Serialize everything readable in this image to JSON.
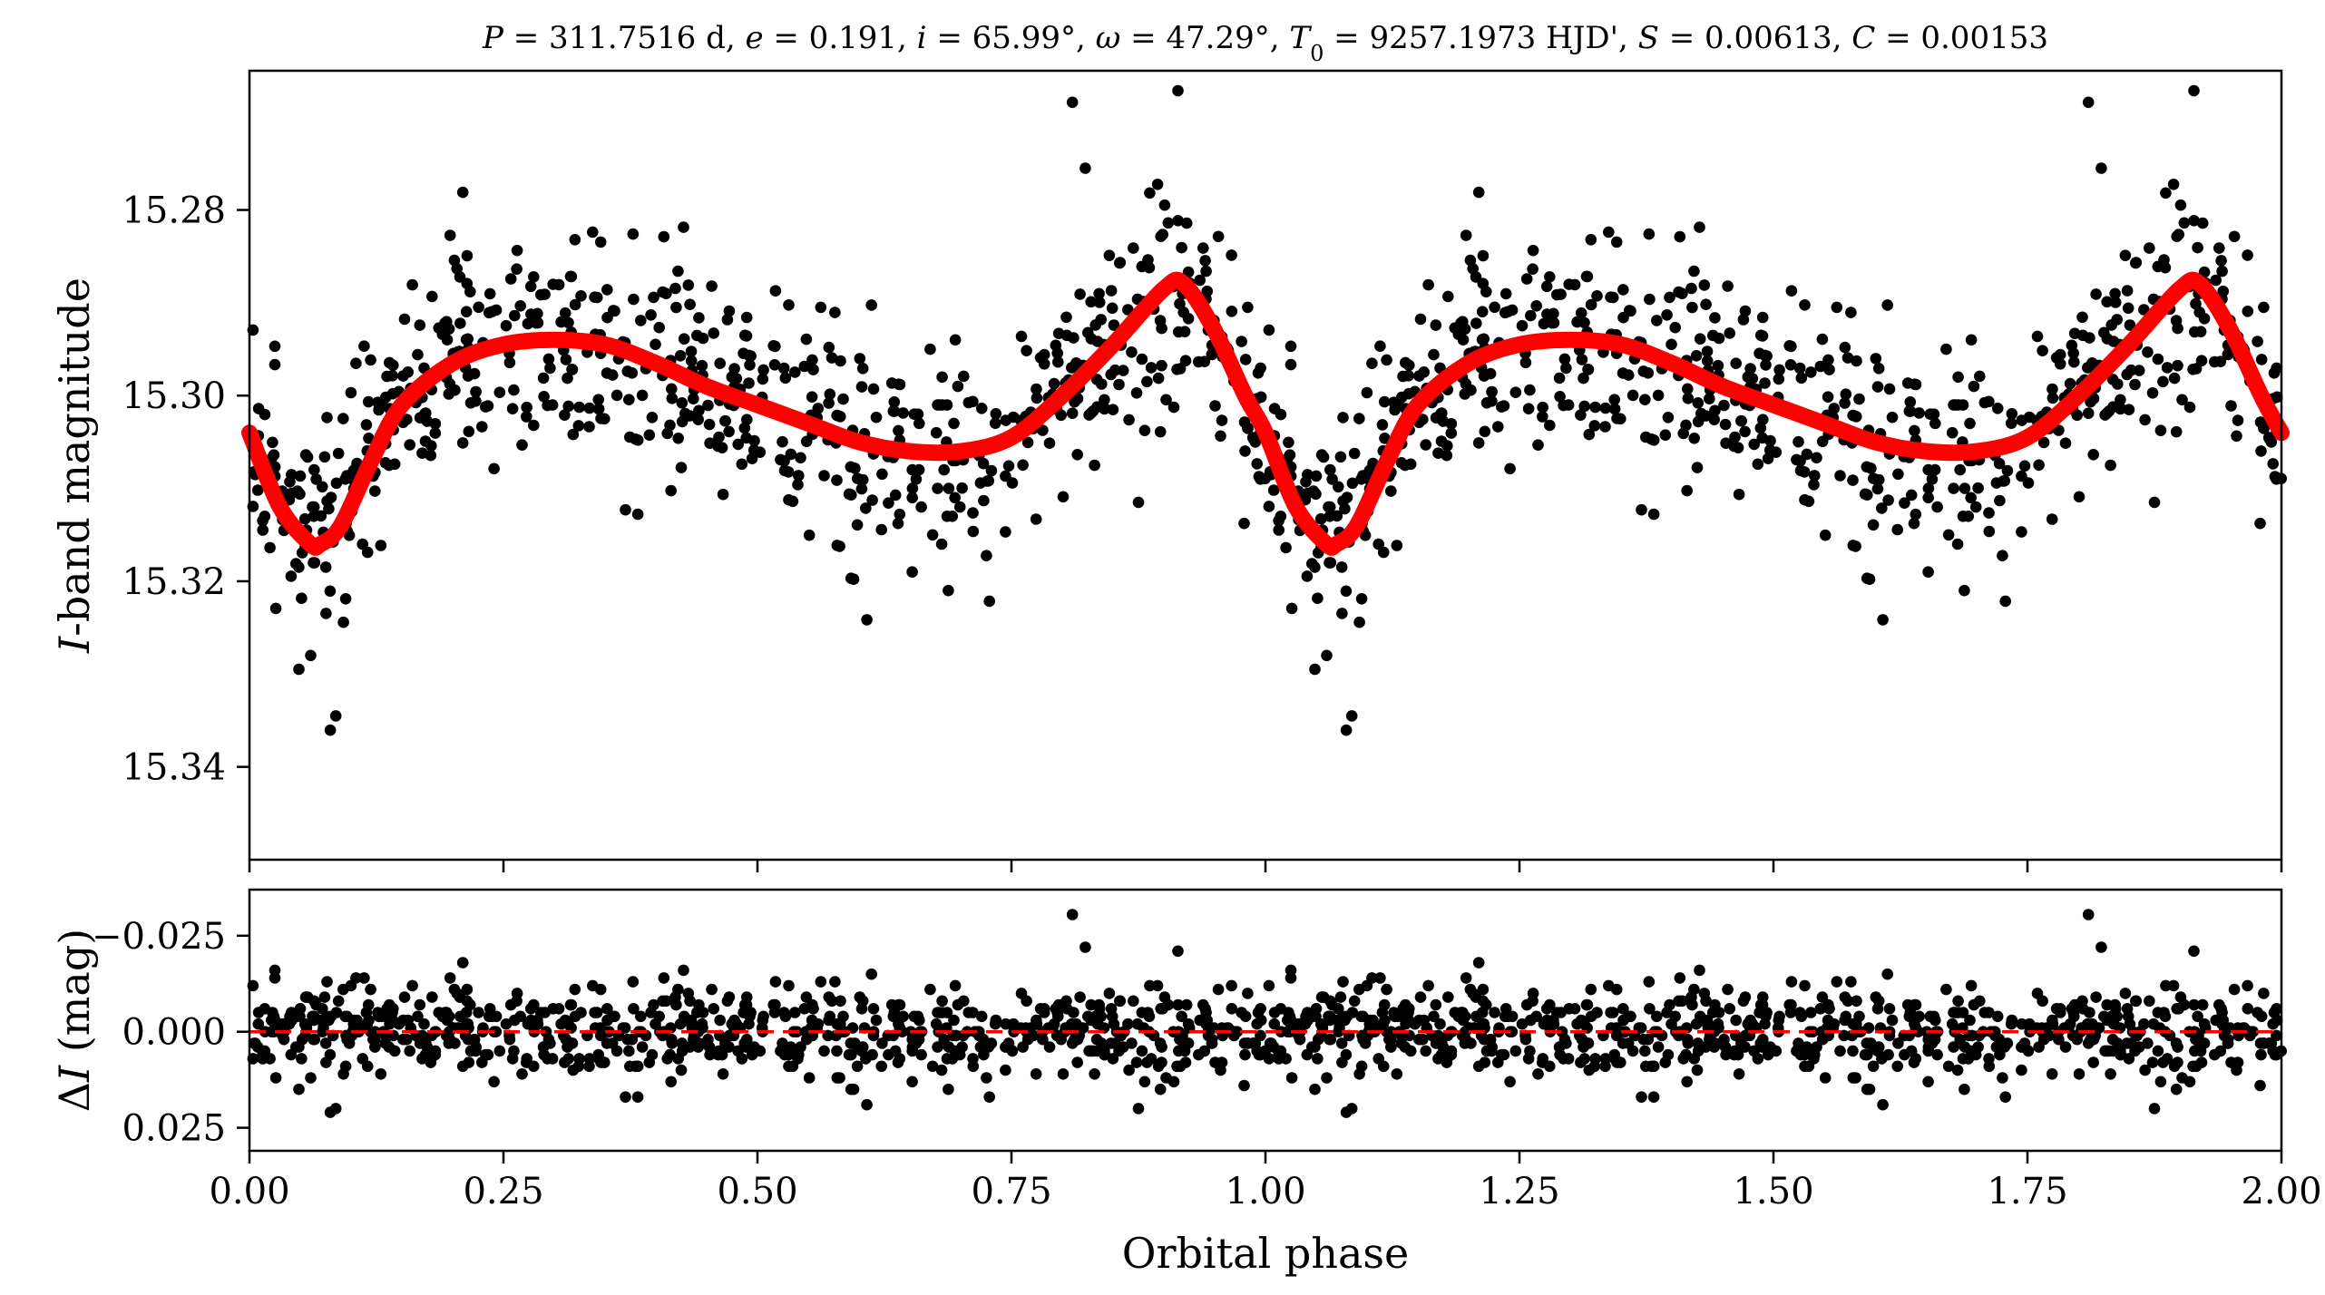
{
  "chart_data": [
    {
      "type": "scatter",
      "title": "P = 311.7516 d, e = 0.191, i = 65.99°, ω = 47.29°, T0 = 9257.1973 HJD', S = 0.00613, C = 0.00153",
      "xlabel": "",
      "ylabel": "I-band magnitude",
      "xlim": [
        0.0,
        2.0
      ],
      "ylim": [
        15.35,
        15.265
      ],
      "y_inverted": true,
      "yticks": [
        "15.28",
        "15.30",
        "15.32",
        "15.34"
      ],
      "grid": false,
      "colors": {
        "points": "#000000",
        "model": "#ff0000"
      },
      "model_curve": {
        "name": "",
        "x": [
          0.0,
          0.03,
          0.06,
          0.07,
          0.09,
          0.12,
          0.15,
          0.2,
          0.25,
          0.3,
          0.35,
          0.4,
          0.45,
          0.5,
          0.55,
          0.6,
          0.65,
          0.7,
          0.75,
          0.8,
          0.85,
          0.9,
          0.92,
          0.95,
          0.98,
          1.0,
          1.03,
          1.06,
          1.07,
          1.09,
          1.12,
          1.15,
          1.2,
          1.25,
          1.3,
          1.35,
          1.4,
          1.45,
          1.5,
          1.55,
          1.6,
          1.65,
          1.7,
          1.75,
          1.8,
          1.85,
          1.9,
          1.92,
          1.95,
          1.98,
          2.0
        ],
        "y": [
          15.304,
          15.312,
          15.316,
          15.316,
          15.314,
          15.307,
          15.301,
          15.2965,
          15.2945,
          15.294,
          15.2945,
          15.2965,
          15.299,
          15.301,
          15.303,
          15.305,
          15.306,
          15.306,
          15.3045,
          15.3,
          15.2945,
          15.2885,
          15.288,
          15.293,
          15.3,
          15.304,
          15.312,
          15.316,
          15.316,
          15.314,
          15.307,
          15.301,
          15.2965,
          15.2945,
          15.294,
          15.2945,
          15.2965,
          15.299,
          15.301,
          15.303,
          15.305,
          15.306,
          15.306,
          15.3045,
          15.3,
          15.2945,
          15.2885,
          15.288,
          15.293,
          15.3,
          15.304
        ]
      },
      "scatter_points": {
        "description_of_generation": "",
        "x": [],
        "y": []
      }
    },
    {
      "type": "scatter",
      "xlabel": "Orbital phase",
      "ylabel": "ΔI (mag)",
      "xlim": [
        0.0,
        2.0
      ],
      "ylim": [
        0.031,
        -0.037
      ],
      "y_inverted": true,
      "xticks": [
        "0.00",
        "0.25",
        "0.50",
        "0.75",
        "1.00",
        "1.25",
        "1.50",
        "1.75",
        "2.00"
      ],
      "yticks": [
        "−0.025",
        "0.000",
        "0.025"
      ],
      "reference_line": {
        "y": 0.0,
        "style": "dashed",
        "color": "#ff0000"
      },
      "grid": false
    }
  ],
  "title_parts": {
    "p_sym": "P",
    "p_val": " = 311.7516 d, ",
    "e_sym": "e",
    "e_val": " = 0.191, ",
    "i_sym": "i",
    "i_val": " = 65.99°, ",
    "w_sym": "ω",
    "w_val": " = 47.29°, ",
    "t_sym": "T",
    "t_sub": "0",
    "t_val": " = 9257.1973 HJD', ",
    "s_sym": "S",
    "s_val": " = 0.00613, ",
    "c_sym": "C",
    "c_val": " = 0.00153"
  },
  "ylabel_top_parts": {
    "sym": "I",
    "rest": "-band magnitude"
  },
  "ylabel_bottom_parts": {
    "delta": "Δ",
    "sym": "I",
    "rest": " (mag)"
  }
}
